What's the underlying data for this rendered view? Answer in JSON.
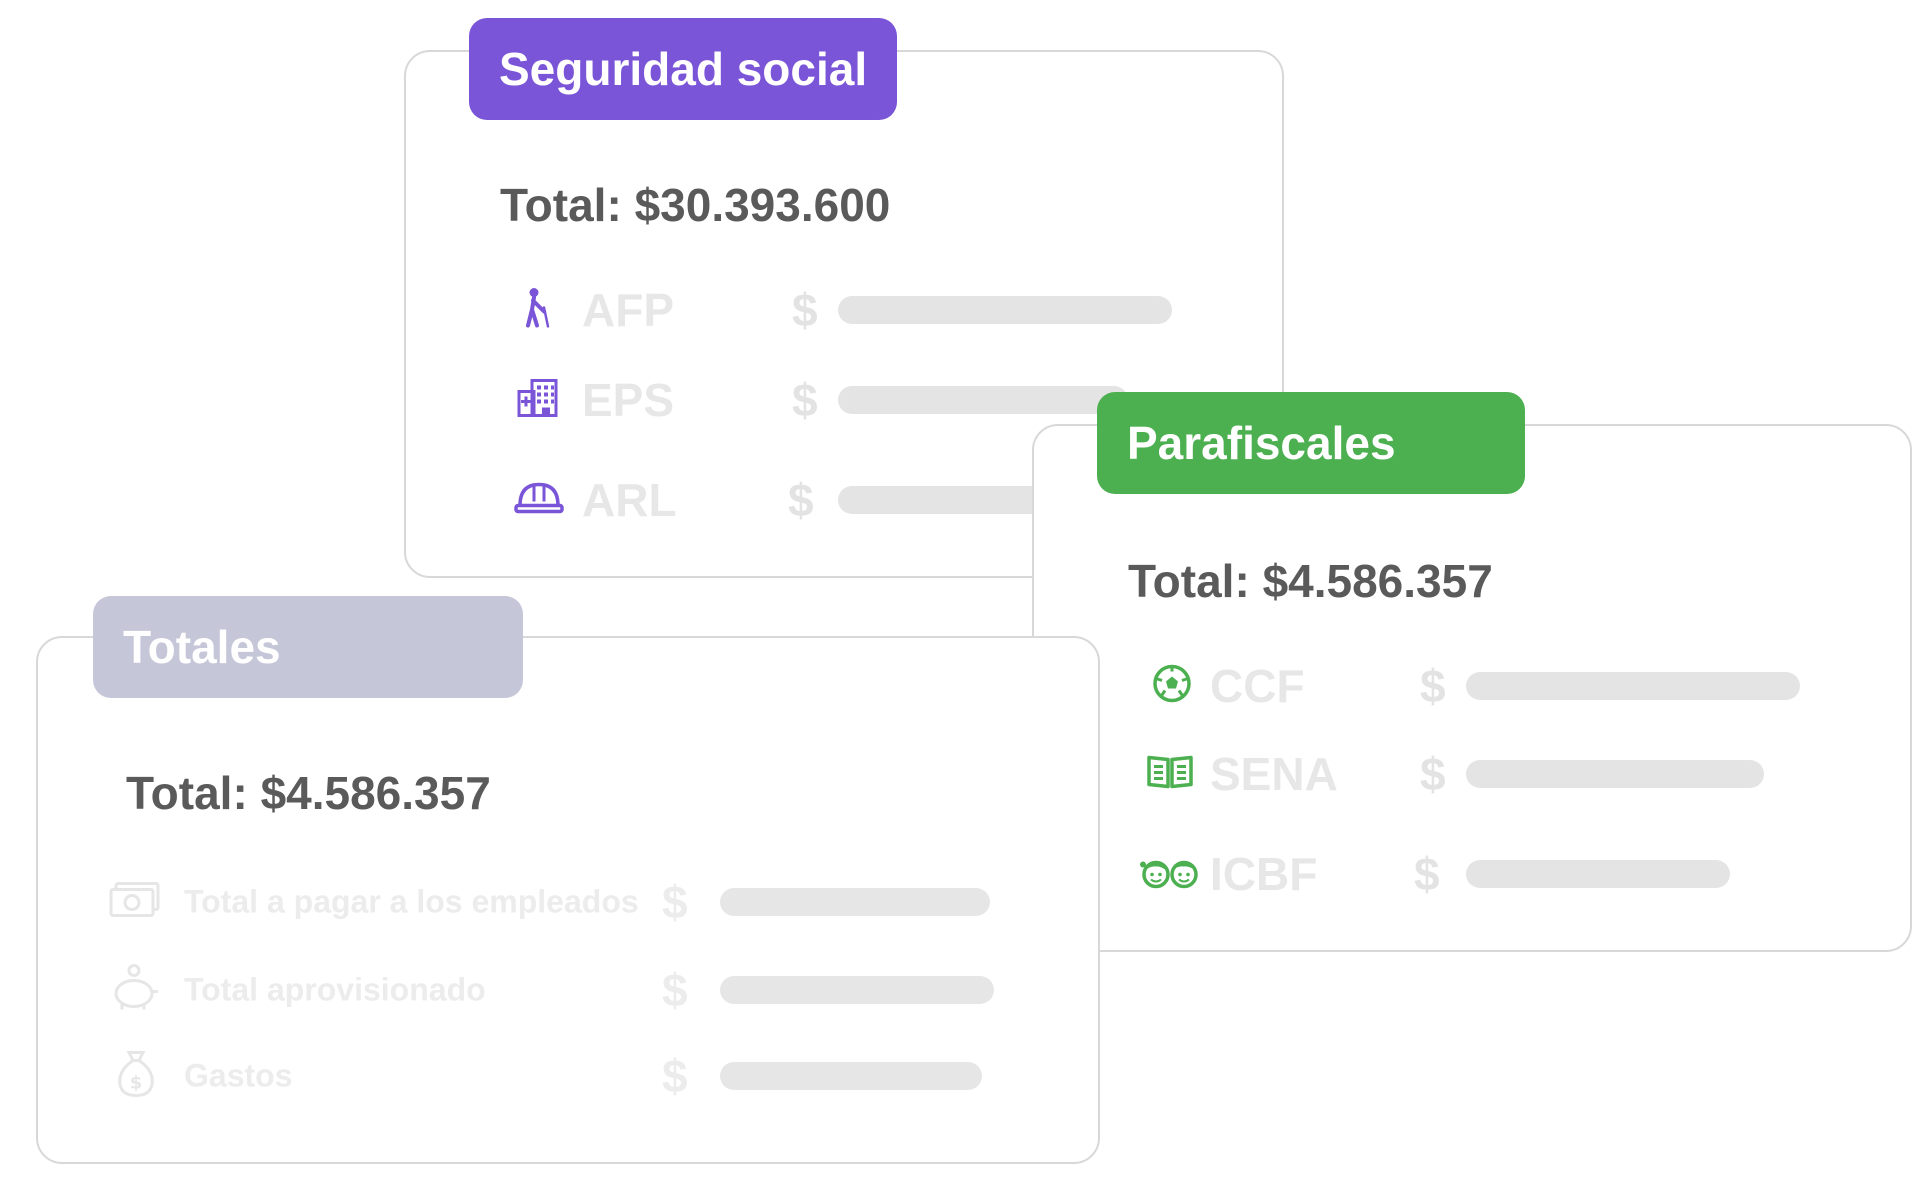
{
  "seguridad": {
    "title": "Seguridad social",
    "total": "Total: $30.393.600",
    "accent": "#7b55d8",
    "items": [
      {
        "label": "AFP",
        "currency": "$",
        "icon": "elderly-person-icon"
      },
      {
        "label": "EPS",
        "currency": "$",
        "icon": "hospital-icon"
      },
      {
        "label": "ARL",
        "currency": "$",
        "icon": "hard-hat-icon"
      }
    ]
  },
  "parafiscales": {
    "title": "Parafiscales",
    "total": "Total: $4.586.357",
    "accent": "#4caf50",
    "items": [
      {
        "label": "CCF",
        "currency": "$",
        "icon": "soccer-ball-icon"
      },
      {
        "label": "SENA",
        "currency": "$",
        "icon": "open-book-icon"
      },
      {
        "label": "ICBF",
        "currency": "$",
        "icon": "children-icon"
      }
    ]
  },
  "totales": {
    "title": "Totales",
    "total": "Total: $4.586.357",
    "accent": "#c5c6d8",
    "items": [
      {
        "label": "Total a pagar a los empleados",
        "currency": "$",
        "icon": "money-icon"
      },
      {
        "label": "Total aprovisionado",
        "currency": "$",
        "icon": "piggy-bank-icon"
      },
      {
        "label": "Gastos",
        "currency": "$",
        "icon": "money-bag-icon"
      }
    ]
  }
}
